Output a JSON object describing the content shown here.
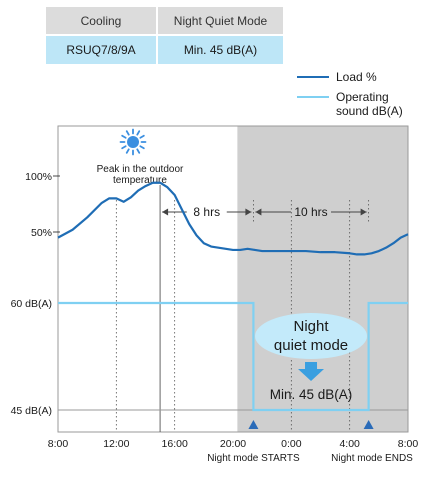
{
  "table": {
    "headers": [
      "Cooling",
      "Night Quiet Mode"
    ],
    "row": [
      "RSUQ7/8/9A",
      "Min. 45 dB(A)"
    ]
  },
  "colors": {
    "load_line": "#1f6db5",
    "sound_line": "#7fd0f2",
    "night_shade": "#cfcfcf",
    "bubble": "#c3eafa",
    "arrow": "#3a9fe0",
    "moon": "#bfe6fa",
    "sun": "#3b8fe0",
    "marker": "#2a6bb8"
  },
  "icons": [
    "sun-icon",
    "moon-icon",
    "down-arrow-icon",
    "triangle-marker-icon"
  ],
  "chart_data": {
    "type": "line",
    "legend": {
      "position": "top-right",
      "items": [
        "Load %",
        "Operating sound dB(A)"
      ]
    },
    "x_ticks": [
      "8:00",
      "12:00",
      "16:00",
      "20:00",
      "0:00",
      "4:00",
      "8:00"
    ],
    "x_tick_hours": [
      8,
      12,
      16,
      20,
      24,
      28,
      32
    ],
    "xlim": [
      8,
      32
    ],
    "grid": false,
    "load_axis": {
      "ticks": [
        {
          "label": "100%",
          "value": 100
        },
        {
          "label": "50%",
          "value": 50
        }
      ]
    },
    "sound_axis": {
      "ticks": [
        {
          "label": "60 dB(A)",
          "value": 60
        },
        {
          "label": "45 dB(A)",
          "value": 45
        }
      ]
    },
    "series": [
      {
        "name": "Load %",
        "x": [
          8,
          9,
          10,
          11,
          11.5,
          12,
          12.5,
          13,
          13.5,
          14,
          14.5,
          15,
          15.5,
          16,
          16.5,
          17,
          17.5,
          18,
          18.5,
          19,
          19.5,
          20,
          20.5,
          21,
          21.5,
          22,
          22.5,
          23,
          24,
          25,
          26,
          27,
          28,
          28.5,
          29,
          29.5,
          30,
          30.5,
          31,
          31.5,
          32
        ],
        "values": [
          45,
          52,
          63,
          76,
          80,
          80,
          77,
          81,
          87,
          91,
          94,
          94,
          90,
          83,
          70,
          57,
          47,
          40,
          37,
          36,
          35,
          34,
          34,
          35,
          34,
          33,
          33,
          33,
          33,
          33,
          32,
          32,
          31,
          30,
          30,
          31,
          33,
          36,
          40,
          45,
          48
        ]
      },
      {
        "name": "Operating sound dB(A)",
        "x": [
          8,
          21.4,
          21.4,
          29.3,
          29.3,
          32
        ],
        "values": [
          60,
          60,
          45,
          45,
          60,
          60
        ]
      }
    ],
    "night_period": {
      "start": 20.3,
      "end": 32
    },
    "annotations": {
      "peak_label": "Peak in the outdoor temperature",
      "span_1": "8 hrs",
      "span_2": "10 hrs",
      "bubble_label": "Night quiet mode",
      "min_label": "Min. 45 dB(A)",
      "night_start": "Night mode STARTS",
      "night_end": "Night mode ENDS"
    }
  }
}
